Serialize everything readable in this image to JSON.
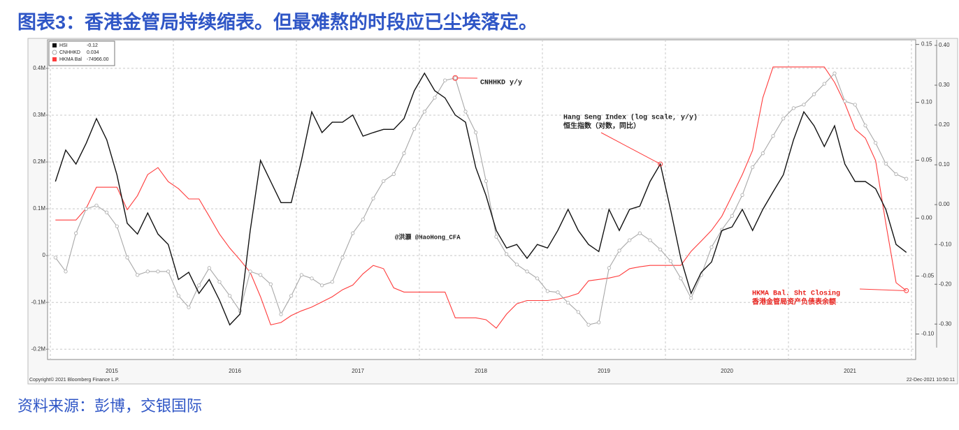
{
  "chart_data": {
    "type": "line",
    "title": "图表3：香港金管局持续缩表。但最难熬的时段应已尘埃落定。",
    "source": "资料来源：彭博，交银国际",
    "copyright": "Copyright© 2021 Bloomberg Finance L.P.",
    "timestamp": "22-Dec-2021 10:50:11",
    "watermark": "@洪灏 @HaoHong_CFA",
    "annotations": [
      "CNHHKD y/y",
      "Hang Seng Index (log scale, y/y)",
      "恒生指数（对数，同比）",
      "HKMA Bal. Sht Closing",
      "香港金管局资产负债表余额"
    ],
    "categories": [
      null,
      null,
      null,
      null,
      null,
      "2015",
      null,
      null,
      null,
      null,
      null,
      null,
      null,
      null,
      null,
      null,
      null,
      "2016",
      null,
      null,
      null,
      null,
      null,
      null,
      null,
      null,
      null,
      null,
      null,
      "2017",
      null,
      null,
      null,
      null,
      null,
      null,
      null,
      null,
      null,
      null,
      null,
      "2018",
      null,
      null,
      null,
      null,
      null,
      null,
      null,
      null,
      null,
      null,
      null,
      "2019",
      null,
      null,
      null,
      null,
      null,
      null,
      null,
      null,
      null,
      null,
      null,
      "2020",
      null,
      null,
      null,
      null,
      null,
      null,
      null,
      null,
      null,
      null,
      null,
      "2021",
      null,
      null,
      null,
      null,
      null,
      null
    ],
    "series": [
      {
        "name": "HSI",
        "legend_value": "-0.12",
        "color": "#111111",
        "axis": "y3",
        "values": [
          0.058,
          0.137,
          0.102,
          0.154,
          0.216,
          0.163,
          0.075,
          -0.047,
          -0.074,
          -0.021,
          -0.074,
          -0.1,
          -0.188,
          -0.17,
          -0.223,
          -0.188,
          -0.24,
          -0.302,
          -0.275,
          -0.065,
          0.111,
          0.058,
          0.005,
          0.005,
          0.111,
          0.233,
          0.181,
          0.207,
          0.207,
          0.225,
          0.172,
          0.181,
          0.189,
          0.189,
          0.216,
          0.286,
          0.33,
          0.286,
          0.268,
          0.225,
          0.207,
          0.093,
          0.023,
          -0.065,
          -0.109,
          -0.1,
          -0.135,
          -0.1,
          -0.109,
          -0.065,
          -0.012,
          -0.065,
          -0.1,
          -0.118,
          -0.012,
          -0.065,
          -0.012,
          -0.004,
          0.058,
          0.102,
          -0.012,
          -0.135,
          -0.223,
          -0.17,
          -0.144,
          -0.065,
          -0.056,
          -0.012,
          -0.065,
          -0.012,
          0.032,
          0.075,
          0.163,
          0.233,
          0.198,
          0.146,
          0.198,
          0.102,
          0.058,
          0.058,
          0.04,
          -0.012,
          -0.1,
          -0.12
        ]
      },
      {
        "name": "CNHHKD",
        "legend_value": "0.034",
        "color": "#a8a8a8",
        "axis": "y2",
        "values": [
          -0.034,
          -0.046,
          -0.013,
          0.008,
          0.011,
          0.005,
          -0.007,
          -0.034,
          -0.049,
          -0.046,
          -0.046,
          -0.046,
          -0.067,
          -0.077,
          -0.058,
          -0.043,
          -0.055,
          -0.067,
          -0.08,
          -0.046,
          -0.049,
          -0.057,
          -0.083,
          -0.067,
          -0.049,
          -0.052,
          -0.058,
          -0.055,
          -0.034,
          -0.013,
          -0.001,
          0.017,
          0.032,
          0.038,
          0.056,
          0.077,
          0.092,
          0.104,
          0.119,
          0.121,
          0.092,
          0.074,
          0.032,
          -0.016,
          -0.031,
          -0.04,
          -0.046,
          -0.052,
          -0.063,
          -0.064,
          -0.073,
          -0.081,
          -0.092,
          -0.09,
          -0.043,
          -0.028,
          -0.019,
          -0.013,
          -0.019,
          -0.027,
          -0.037,
          -0.052,
          -0.069,
          -0.049,
          -0.025,
          -0.01,
          0.002,
          0.02,
          0.044,
          0.056,
          0.071,
          0.086,
          0.095,
          0.098,
          0.107,
          0.116,
          0.125,
          0.101,
          0.098,
          0.08,
          0.065,
          0.047,
          0.038,
          0.034
        ]
      },
      {
        "name": "HKMA Bal",
        "legend_value": "-74966.00",
        "color": "#ff3b3b",
        "axis": "y",
        "values": [
          76000,
          76000,
          76000,
          101000,
          146000,
          146000,
          146000,
          98000,
          128000,
          173000,
          188000,
          158000,
          143000,
          121000,
          121000,
          84000,
          46000,
          16000,
          -9000,
          -36000,
          -88000,
          -148000,
          -143000,
          -128000,
          -118000,
          -110000,
          -99000,
          -88000,
          -73000,
          -63000,
          -39000,
          -21000,
          -28000,
          -69000,
          -78000,
          -78000,
          -78000,
          -78000,
          -78000,
          -133000,
          -133000,
          -133000,
          -137000,
          -155000,
          -125000,
          -103000,
          -96000,
          -96000,
          -96000,
          -93000,
          -88000,
          -81000,
          -54000,
          -51000,
          -48000,
          -43000,
          -28000,
          -24000,
          -21000,
          -21000,
          -21000,
          -21000,
          9000,
          31000,
          54000,
          84000,
          128000,
          173000,
          225000,
          337000,
          403000,
          403000,
          403000,
          403000,
          403000,
          403000,
          370000,
          325000,
          270000,
          251000,
          203000,
          69000,
          -58000,
          -74966
        ]
      }
    ],
    "ylim": [
      -222000,
      461000
    ],
    "yticks": [
      {
        "value": 400000,
        "label": "0.4M"
      },
      {
        "value": 300000,
        "label": "0.3M"
      },
      {
        "value": 200000,
        "label": "0.2M"
      },
      {
        "value": 100000,
        "label": "0.1M"
      },
      0,
      {
        "value": -100000,
        "label": "-0.1M"
      },
      {
        "value": -200000,
        "label": "-0.2M"
      }
    ],
    "y2lim": [
      -0.122,
      0.154
    ],
    "y2ticks": [
      0.15,
      {
        "value": 0.1,
        "label": "0.10"
      },
      0.05,
      {
        "value": 0,
        "label": "0.00"
      },
      -0.05,
      {
        "value": -0.1,
        "label": "-0.10"
      }
    ],
    "y3lim": [
      -0.389,
      0.414
    ],
    "y3ticks": [
      {
        "value": 0.4,
        "label": "0.40"
      },
      {
        "value": 0.3,
        "label": "0.30"
      },
      {
        "value": 0.2,
        "label": "0.20"
      },
      {
        "value": 0.1,
        "label": "0.10"
      },
      {
        "value": 0,
        "label": "0.00"
      },
      {
        "value": -0.1,
        "label": "-0.10"
      },
      {
        "value": -0.2,
        "label": "-0.20"
      },
      {
        "value": -0.3,
        "label": "-0.30"
      }
    ],
    "grid": true
  }
}
